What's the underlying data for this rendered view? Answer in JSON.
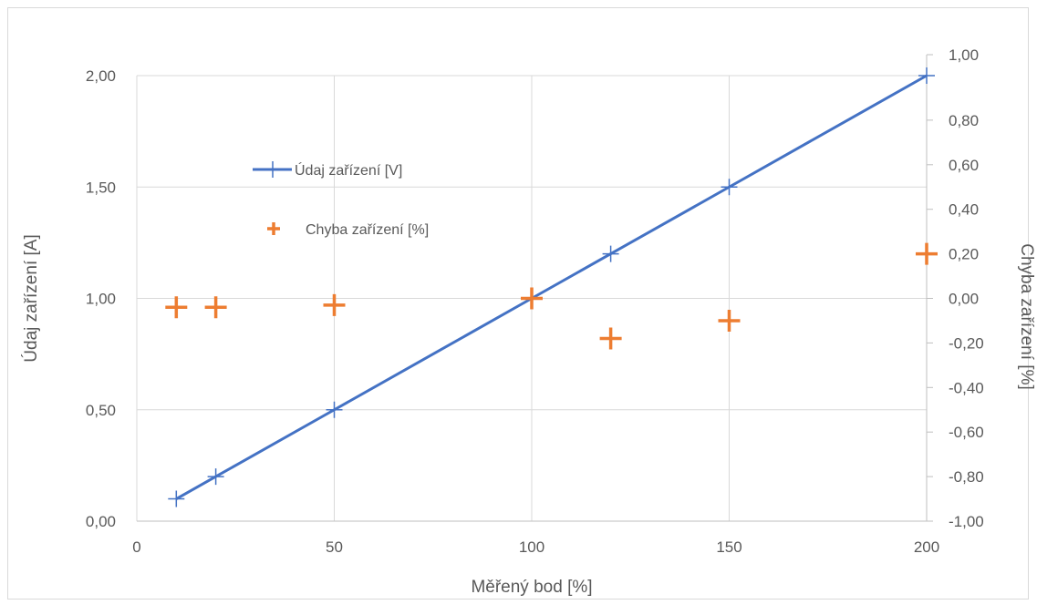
{
  "chart_data": {
    "type": "scatter",
    "title": "",
    "xlabel": "Měřený bod [%]",
    "ylabel": "Údaj zařízení [A]",
    "y2label": "Chyba zařízení [%]",
    "xlim": [
      0,
      200
    ],
    "ylim": [
      0,
      2
    ],
    "y2lim": [
      -1,
      1
    ],
    "x_ticks": [
      "0",
      "50",
      "100",
      "150",
      "200"
    ],
    "y_ticks": [
      "0,00",
      "0,50",
      "1,00",
      "1,50",
      "2,00"
    ],
    "y2_ticks": [
      "-1,00",
      "-0,80",
      "-0,60",
      "-0,40",
      "-0,20",
      "0,00",
      "0,20",
      "0,40",
      "0,60",
      "0,80",
      "1,00"
    ],
    "grid": true,
    "legend": "inside-top-left",
    "series": [
      {
        "name": "Údaj zařízení [V]",
        "axis": "left",
        "style": "line-markers",
        "color": "#4472c4",
        "x": [
          10,
          20,
          50,
          100,
          120,
          150,
          200
        ],
        "y": [
          0.1,
          0.2,
          0.5,
          1.0,
          1.2,
          1.5,
          2.0
        ]
      },
      {
        "name": "Chyba zařízení [%]",
        "axis": "right",
        "style": "markers",
        "color": "#ed7d31",
        "x": [
          10,
          20,
          50,
          100,
          120,
          150,
          200
        ],
        "y": [
          -0.04,
          -0.04,
          -0.03,
          0.0,
          -0.18,
          -0.1,
          0.2
        ]
      }
    ]
  }
}
